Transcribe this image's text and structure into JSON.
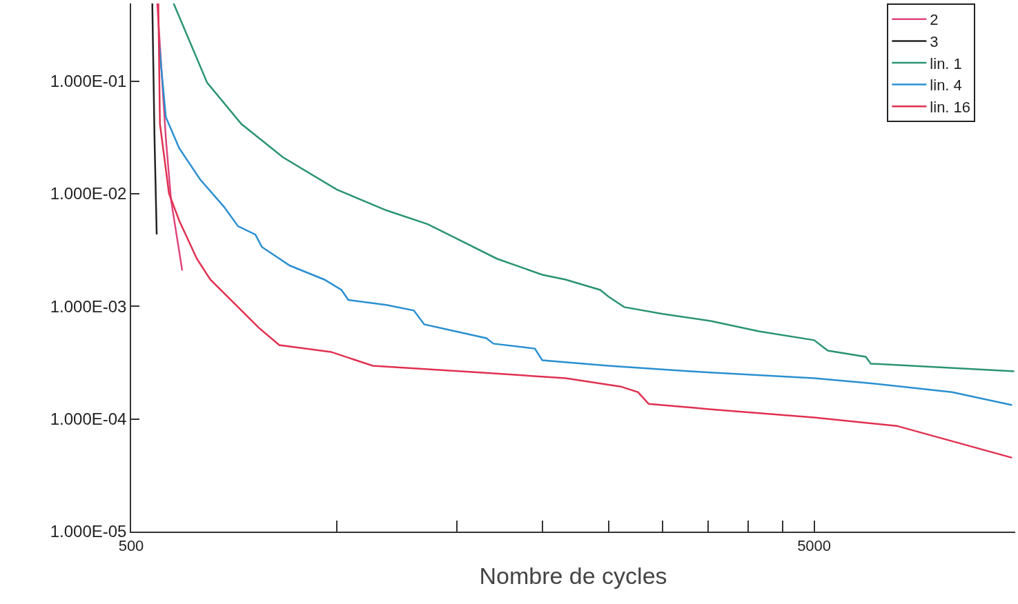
{
  "chart_data": {
    "type": "line",
    "xlabel": "Nombre de cycles",
    "log": "xy",
    "legend": "top right",
    "marker": "none",
    "xlim": [
      500,
      9850
    ],
    "ylim": [
      1e-05,
      0.49
    ],
    "xticks": [
      500,
      {
        "value": 1000,
        "label": null
      },
      {
        "value": 1500,
        "label": null
      },
      {
        "value": 2000,
        "label": null
      },
      {
        "value": 2500,
        "label": null
      },
      {
        "value": 3000,
        "label": null
      },
      {
        "value": 3500,
        "label": null
      },
      {
        "value": 4000,
        "label": null
      },
      {
        "value": 4500,
        "label": null
      },
      5000
    ],
    "yticks": [
      {
        "value": 1e-05,
        "label": "1.000E-05"
      },
      {
        "value": 0.0001,
        "label": "1.000E-04"
      },
      {
        "value": 0.001,
        "label": "1.000E-03"
      },
      {
        "value": 0.01,
        "label": "1.000E-02"
      },
      {
        "value": 0.1,
        "label": "1.000E-01"
      }
    ],
    "series": [
      {
        "name": "2",
        "color": "#e0457b",
        "x": [
          546,
          562,
          572,
          594
        ],
        "values": [
          0.49,
          0.0314,
          0.00881,
          0.00208
        ]
      },
      {
        "name": "3",
        "color": "#222222",
        "x": [
          537,
          541,
          545
        ],
        "values": [
          0.49,
          0.0314,
          0.00435
        ]
      },
      {
        "name": "lin. 1",
        "color": "#2a9470",
        "x": [
          577,
          646,
          725,
          834,
          1000,
          1182,
          1359,
          1492,
          1716,
          2000,
          2163,
          2431,
          2500,
          2636,
          3000,
          3527,
          4150,
          5000,
          5236,
          5951,
          6053,
          9816
        ],
        "values": [
          0.49,
          0.097,
          0.0417,
          0.0211,
          0.0109,
          0.00713,
          0.00537,
          0.00405,
          0.00265,
          0.00191,
          0.00173,
          0.0014,
          0.00122,
          0.000986,
          0.000857,
          0.000743,
          0.000601,
          0.000501,
          0.000405,
          0.000357,
          0.00031,
          0.000265
        ]
      },
      {
        "name": "lin. 4",
        "color": "#2a8fd0",
        "x": [
          549,
          562,
          588,
          631,
          684,
          717,
          760,
          777,
          854,
          959,
          1016,
          1040,
          1182,
          1297,
          1343,
          1492,
          1656,
          1696,
          1950,
          2000,
          2500,
          3290,
          5000,
          6024,
          7961,
          9744
        ],
        "values": [
          0.227,
          0.048,
          0.0254,
          0.0134,
          0.00764,
          0.00515,
          0.00435,
          0.00337,
          0.0023,
          0.00173,
          0.0014,
          0.00114,
          0.00103,
          0.000919,
          0.000692,
          0.000601,
          0.000522,
          0.000467,
          0.000422,
          0.000332,
          0.000297,
          0.000265,
          0.00023,
          0.000208,
          0.000173,
          0.000133
        ]
      },
      {
        "name": "lin. 16",
        "color": "#e03050",
        "x": [
          548,
          551,
          568,
          588,
          624,
          653,
          717,
          769,
          824,
          981,
          1129,
          1637,
          2163,
          2606,
          2762,
          2862,
          3696,
          5000,
          6605,
          9744
        ],
        "values": [
          0.49,
          0.0417,
          0.0101,
          0.00577,
          0.00265,
          0.00173,
          0.000986,
          0.000646,
          0.000453,
          0.000394,
          0.000297,
          0.000258,
          0.00023,
          0.000194,
          0.000173,
          0.000136,
          0.000119,
          0.000103,
          8.69e-05,
          4.53e-05
        ]
      }
    ]
  }
}
